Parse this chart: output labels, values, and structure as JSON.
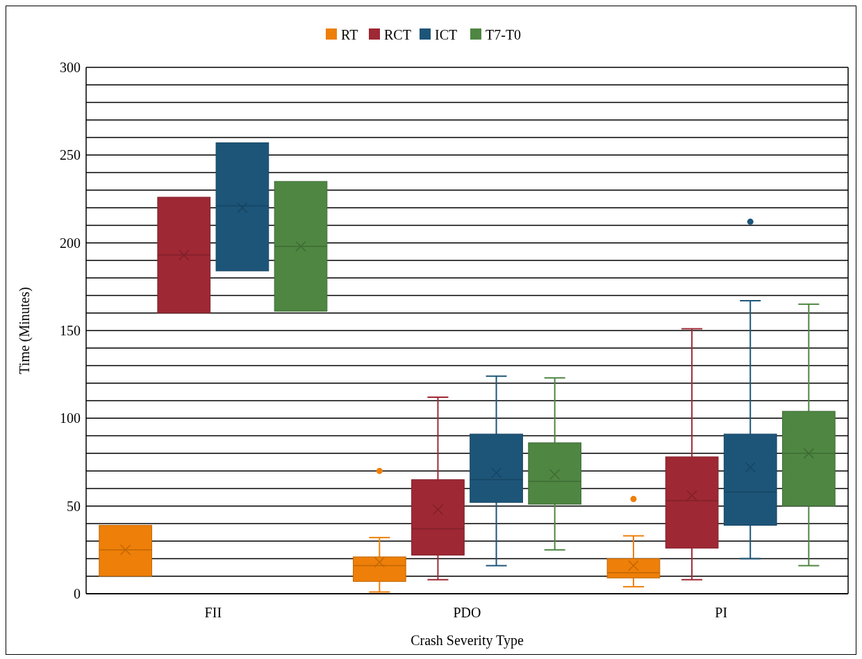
{
  "chart_data": {
    "type": "box",
    "xlabel": "Crash Severity Type",
    "ylabel": "Time (Minutes)",
    "categories": [
      "FII",
      "PDO",
      "PI"
    ],
    "ylim": [
      0,
      300
    ],
    "yticks": [
      0,
      {
        "value": 10,
        "label": null
      },
      {
        "value": 20,
        "label": null
      },
      {
        "value": 30,
        "label": null
      },
      {
        "value": 40,
        "label": null
      },
      50,
      {
        "value": 60,
        "label": null
      },
      {
        "value": 70,
        "label": null
      },
      {
        "value": 80,
        "label": null
      },
      {
        "value": 90,
        "label": null
      },
      100,
      {
        "value": 110,
        "label": null
      },
      {
        "value": 120,
        "label": null
      },
      {
        "value": 130,
        "label": null
      },
      {
        "value": 140,
        "label": null
      },
      150,
      {
        "value": 160,
        "label": null
      },
      {
        "value": 170,
        "label": null
      },
      {
        "value": 180,
        "label": null
      },
      {
        "value": 190,
        "label": null
      },
      200,
      {
        "value": 210,
        "label": null
      },
      {
        "value": 220,
        "label": null
      },
      {
        "value": 230,
        "label": null
      },
      {
        "value": 240,
        "label": null
      },
      250,
      {
        "value": 260,
        "label": null
      },
      {
        "value": 270,
        "label": null
      },
      {
        "value": 280,
        "label": null
      },
      {
        "value": 290,
        "label": null
      },
      300
    ],
    "grid": "y",
    "legend": "top",
    "series": [
      {
        "name": "RT",
        "color": "#ee7f08",
        "boxes": [
          {
            "low": 10,
            "q1": 10,
            "median": 25,
            "q3": 39,
            "high": 39,
            "mean": 25
          },
          {
            "low": 1,
            "q1": 7,
            "median": 16,
            "q3": 21,
            "high": 32,
            "mean": 18,
            "outliers": [
              70
            ]
          },
          {
            "low": 4,
            "q1": 9,
            "median": 12,
            "q3": 20,
            "high": 33,
            "mean": 16,
            "outliers": [
              54
            ]
          }
        ]
      },
      {
        "name": "RCT",
        "color": "#9e2834",
        "boxes": [
          {
            "low": 160,
            "q1": 160,
            "median": 193,
            "q3": 226,
            "high": 226,
            "mean": 193
          },
          {
            "low": 8,
            "q1": 22,
            "median": 37,
            "q3": 65,
            "high": 112,
            "mean": 48
          },
          {
            "low": 8,
            "q1": 26,
            "median": 53,
            "q3": 78,
            "high": 151,
            "mean": 56
          }
        ]
      },
      {
        "name": "ICT",
        "color": "#1d5579",
        "boxes": [
          {
            "low": 184,
            "q1": 184,
            "median": 221,
            "q3": 257,
            "high": 257,
            "mean": 220
          },
          {
            "low": 16,
            "q1": 52,
            "median": 65,
            "q3": 91,
            "high": 124,
            "mean": 69
          },
          {
            "low": 20,
            "q1": 39,
            "median": 58,
            "q3": 91,
            "high": 167,
            "mean": 72,
            "outliers": [
              212
            ]
          }
        ]
      },
      {
        "name": "T7-T0",
        "color": "#4e8642",
        "boxes": [
          {
            "low": 161,
            "q1": 161,
            "median": 198,
            "q3": 235,
            "high": 235,
            "mean": 198
          },
          {
            "low": 25,
            "q1": 51,
            "median": 64,
            "q3": 86,
            "high": 123,
            "mean": 68
          },
          {
            "low": 16,
            "q1": 50,
            "median": 80,
            "q3": 104,
            "high": 165,
            "mean": 80
          }
        ]
      }
    ]
  }
}
